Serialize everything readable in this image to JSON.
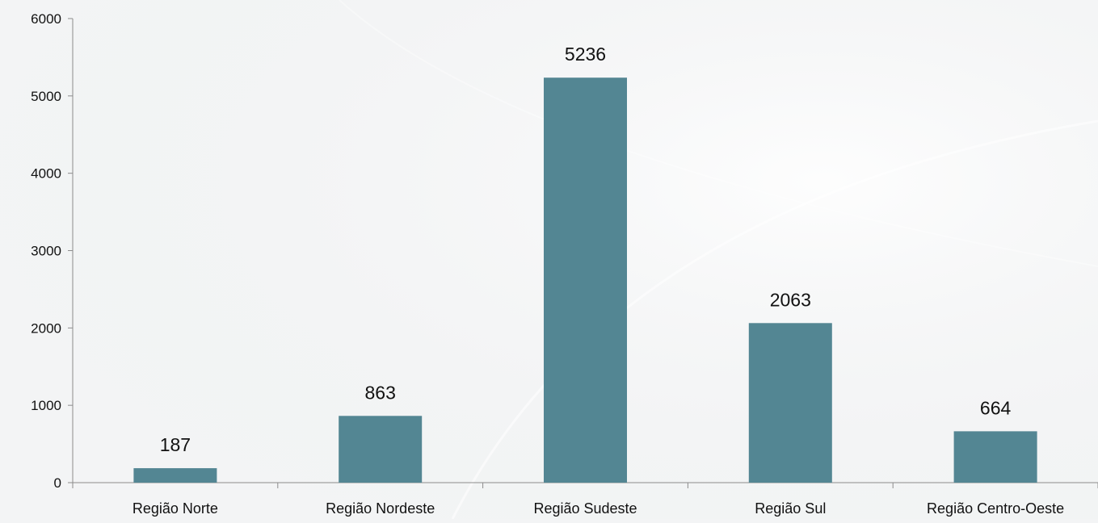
{
  "chart_data": {
    "type": "bar",
    "title": "",
    "xlabel": "",
    "ylabel": "",
    "categories": [
      "Região Norte",
      "Região Nordeste",
      "Região Sudeste",
      "Região Sul",
      "Região Centro-Oeste"
    ],
    "values": [
      187,
      863,
      5236,
      2063,
      664
    ],
    "data_labels": [
      "187",
      "863",
      "5236",
      "2063",
      "664"
    ],
    "ylim": [
      0,
      6000
    ],
    "y_ticks": [
      0,
      1000,
      2000,
      3000,
      4000,
      5000,
      6000
    ],
    "y_tick_labels": [
      "0",
      "1000",
      "2000",
      "3000",
      "4000",
      "5000",
      "6000"
    ],
    "grid": false,
    "legend": "none",
    "bar_color": "#538693",
    "axis_color": "#8c8c8c",
    "background_color": "#f3f4f5"
  }
}
